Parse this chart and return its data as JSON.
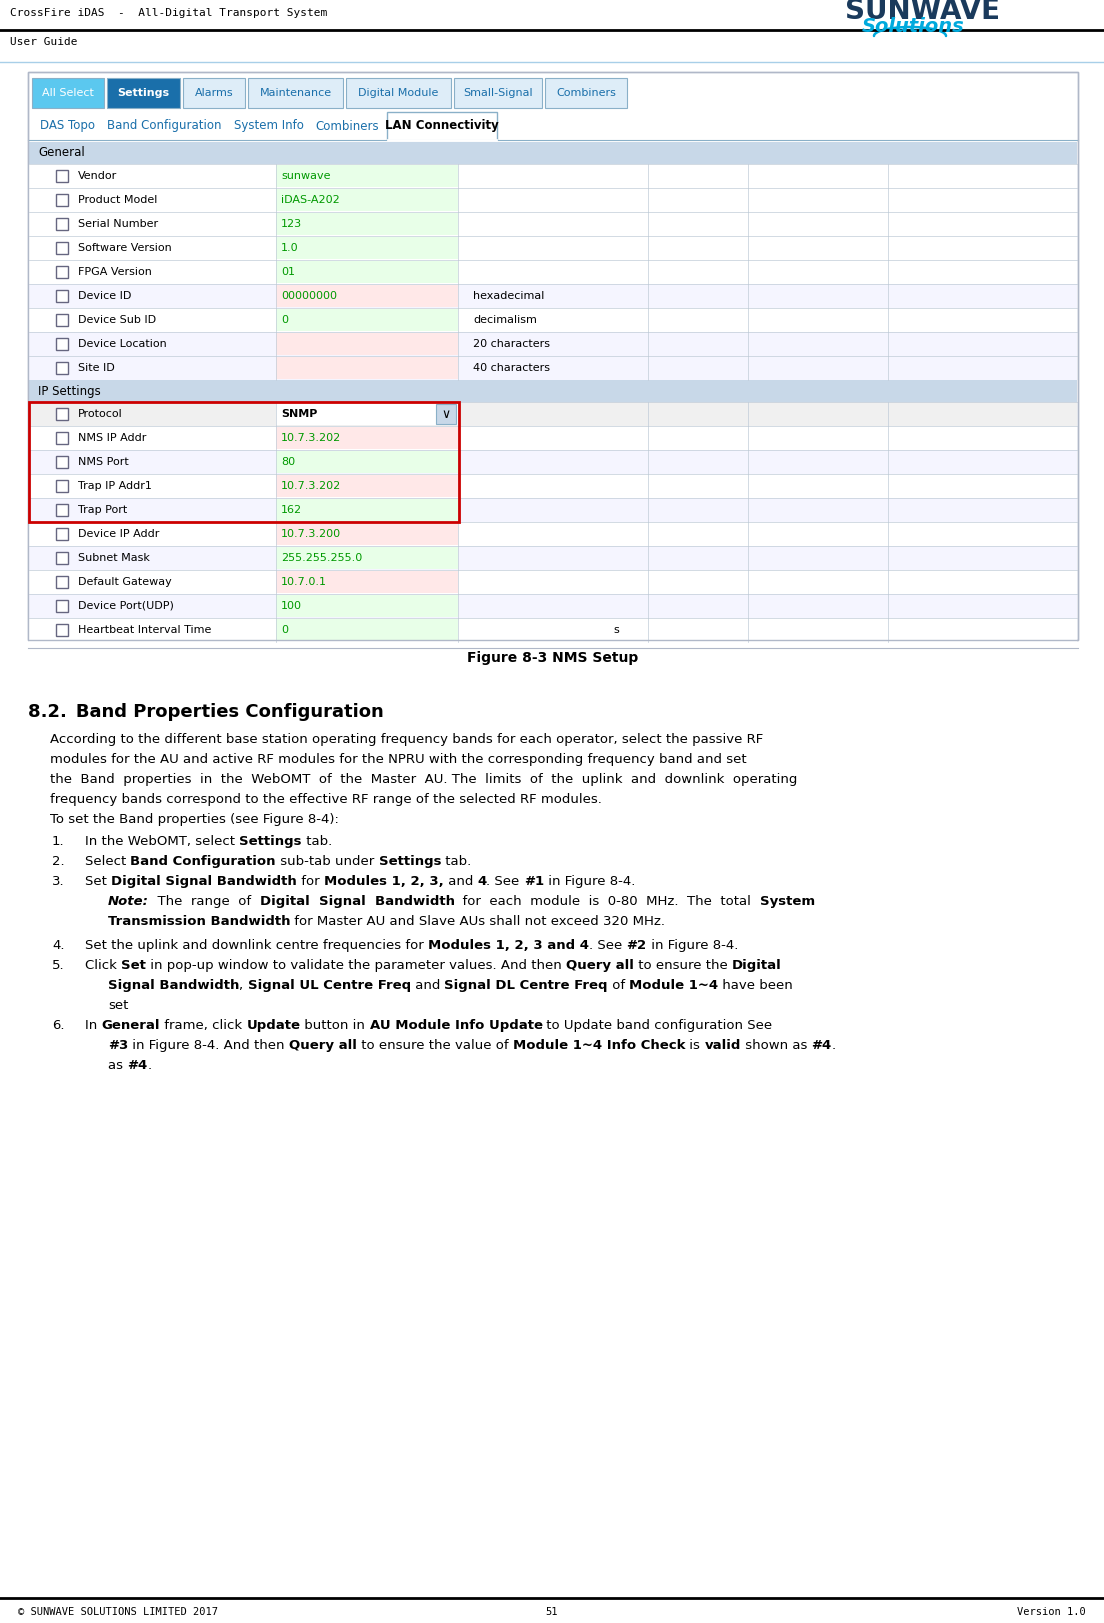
{
  "header_title": "CrossFire iDAS  -  All-Digital Transport System",
  "header_subtitle": "User Guide",
  "footer_left": "© SUNWAVE SOLUTIONS LIMITED 2017",
  "footer_center": "51",
  "footer_right": "Version 1.0",
  "figure_caption": "Figure 8-3 NMS Setup",
  "section_title": "8.2. Band Properties Configuration",
  "tab_items": [
    "All Select",
    "Settings",
    "Alarms",
    "Maintenance",
    "Digital Module",
    "Small-Signal",
    "Combiners"
  ],
  "subtab_items": [
    "DAS Topo",
    "Band Configuration",
    "System Info",
    "Combiners",
    "LAN Connectivity"
  ],
  "general_rows": [
    {
      "label": "Vendor",
      "value": "sunwave",
      "col3": "",
      "col4": "",
      "vc": "#009900",
      "bg": "#ffffff",
      "vbg": "#e8ffe8"
    },
    {
      "label": "Product Model",
      "value": "iDAS-A202",
      "col3": "",
      "col4": "",
      "vc": "#009900",
      "bg": "#ffffff",
      "vbg": "#e8ffe8"
    },
    {
      "label": "Serial Number",
      "value": "123",
      "col3": "",
      "col4": "",
      "vc": "#009900",
      "bg": "#ffffff",
      "vbg": "#e8ffe8"
    },
    {
      "label": "Software Version",
      "value": "1.0",
      "col3": "",
      "col4": "",
      "vc": "#009900",
      "bg": "#ffffff",
      "vbg": "#e8ffe8"
    },
    {
      "label": "FPGA Version",
      "value": "01",
      "col3": "",
      "col4": "",
      "vc": "#009900",
      "bg": "#ffffff",
      "vbg": "#e8ffe8"
    },
    {
      "label": "Device ID",
      "value": "00000000",
      "col3": "hexadecimal",
      "col4": "",
      "vc": "#009900",
      "bg": "#f5f5ff",
      "vbg": "#ffe8e8"
    },
    {
      "label": "Device Sub ID",
      "value": "0",
      "col3": "decimalism",
      "col4": "",
      "vc": "#009900",
      "bg": "#ffffff",
      "vbg": "#e8ffe8"
    },
    {
      "label": "Device Location",
      "value": "",
      "col3": "20 characters",
      "col4": "",
      "vc": "#009900",
      "bg": "#f5f5ff",
      "vbg": "#ffe8e8"
    },
    {
      "label": "Site ID",
      "value": "",
      "col3": "40 characters",
      "col4": "",
      "vc": "#009900",
      "bg": "#f5f5ff",
      "vbg": "#ffe8e8"
    }
  ],
  "ip_rows": [
    {
      "label": "Protocol",
      "value": "SNMP",
      "dropdown": true,
      "col3": "",
      "col4": "",
      "vc": "#000000",
      "bg": "#f0f0f0",
      "vbg": "#ffffff",
      "rb": true
    },
    {
      "label": "NMS IP Addr",
      "value": "10.7.3.202",
      "dropdown": false,
      "col3": "",
      "col4": "",
      "vc": "#009900",
      "bg": "#ffffff",
      "vbg": "#ffe8e8",
      "rb": true
    },
    {
      "label": "NMS Port",
      "value": "80",
      "dropdown": false,
      "col3": "",
      "col4": "",
      "vc": "#009900",
      "bg": "#f5f5ff",
      "vbg": "#e8ffe8",
      "rb": true
    },
    {
      "label": "Trap IP Addr1",
      "value": "10.7.3.202",
      "dropdown": false,
      "col3": "",
      "col4": "",
      "vc": "#009900",
      "bg": "#ffffff",
      "vbg": "#ffe8e8",
      "rb": true
    },
    {
      "label": "Trap Port",
      "value": "162",
      "dropdown": false,
      "col3": "",
      "col4": "",
      "vc": "#009900",
      "bg": "#f5f5ff",
      "vbg": "#e8ffe8",
      "rb": false
    },
    {
      "label": "Device IP Addr",
      "value": "10.7.3.200",
      "dropdown": false,
      "col3": "",
      "col4": "",
      "vc": "#009900",
      "bg": "#ffffff",
      "vbg": "#ffe8e8",
      "rb": false
    },
    {
      "label": "Subnet Mask",
      "value": "255.255.255.0",
      "dropdown": false,
      "col3": "",
      "col4": "",
      "vc": "#009900",
      "bg": "#f5f5ff",
      "vbg": "#e8ffe8",
      "rb": false
    },
    {
      "label": "Default Gateway",
      "value": "10.7.0.1",
      "dropdown": false,
      "col3": "",
      "col4": "",
      "vc": "#009900",
      "bg": "#ffffff",
      "vbg": "#ffe8e8",
      "rb": false
    },
    {
      "label": "Device Port(UDP)",
      "value": "100",
      "dropdown": false,
      "col3": "",
      "col4": "",
      "vc": "#009900",
      "bg": "#f5f5ff",
      "vbg": "#e8ffe8",
      "rb": false
    },
    {
      "label": "Heartbeat Interval Time",
      "value": "0",
      "dropdown": false,
      "col3": "",
      "col4": "s",
      "vc": "#009900",
      "bg": "#ffffff",
      "vbg": "#e8ffe8",
      "rb": false
    }
  ]
}
